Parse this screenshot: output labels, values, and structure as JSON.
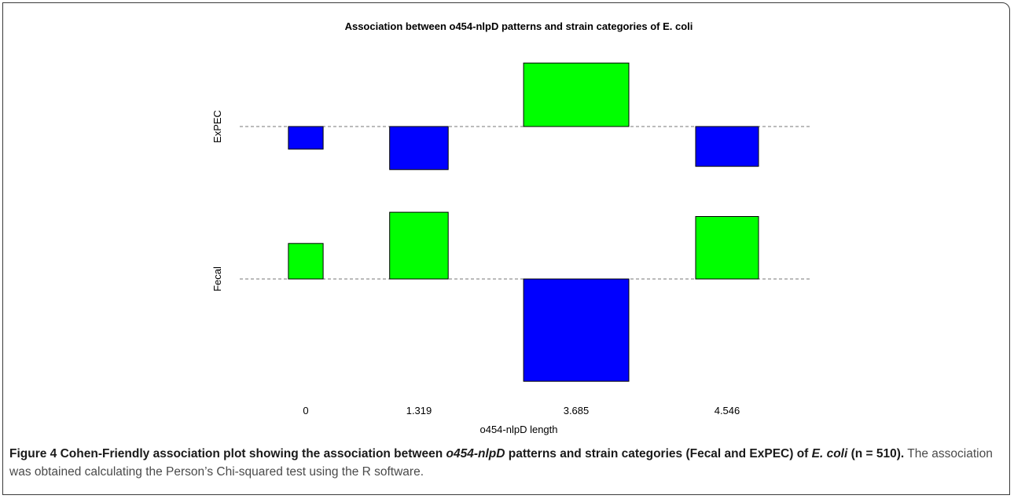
{
  "chart_data": {
    "type": "bar",
    "title": "Association between o454-nlpD patterns and strain categories of E. coli",
    "xlabel": "o454-nlpD length",
    "categories": [
      "0",
      "1.319",
      "3.685",
      "4.546"
    ],
    "rows": [
      "ExPEC",
      "Fecal"
    ],
    "series": [
      {
        "name": "ExPEC",
        "values": [
          -2.1,
          -4.0,
          5.9,
          -3.7
        ]
      },
      {
        "name": "Fecal",
        "values": [
          3.3,
          6.2,
          -9.5,
          5.8
        ]
      }
    ],
    "widths": [
      0.32,
      0.54,
      0.97,
      0.58
    ],
    "colors": {
      "positive": "#00ff00",
      "negative": "#0000ff",
      "baseline": "#777777"
    }
  },
  "caption": {
    "figure_label": "Figure 4",
    "p1": " Cohen-Friendly association plot showing the association between ",
    "gene": "o454-nlpD",
    "p2": " patterns and strain categories (Fecal and ExPEC) of ",
    "species": "E. coli",
    "p3": " (n = 510).",
    "rest": " The association was obtained calculating the Person’s Chi-squared test using the R software."
  }
}
